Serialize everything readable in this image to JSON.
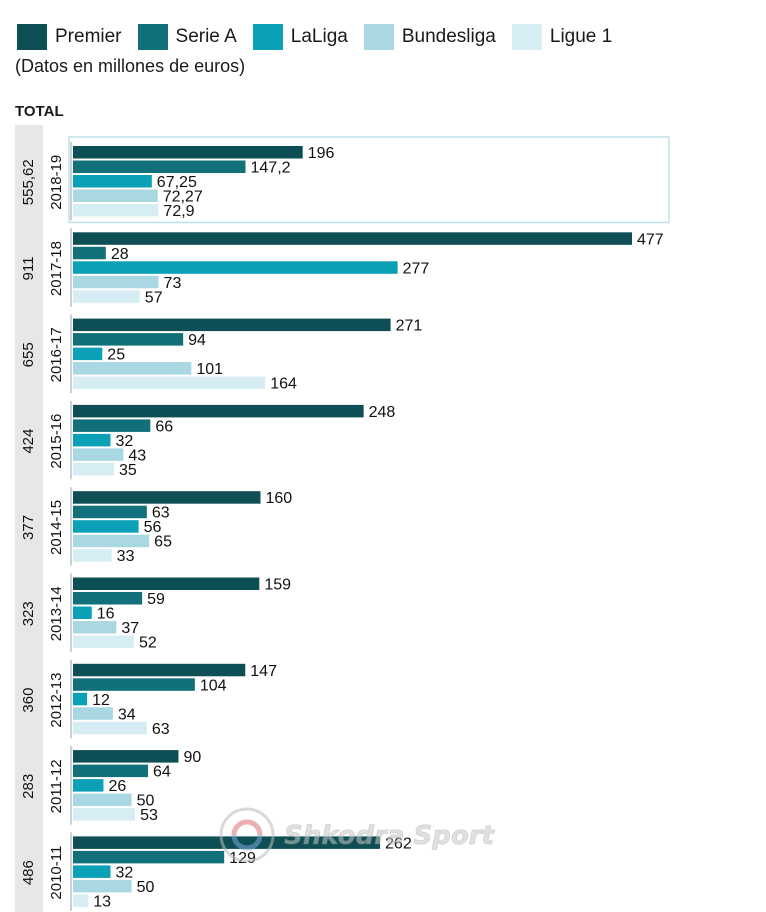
{
  "legend": [
    {
      "label": "Premier",
      "color": "#0e4f55"
    },
    {
      "label": "Serie A",
      "color": "#117079"
    },
    {
      "label": "LaLiga",
      "color": "#0aa0b5"
    },
    {
      "label": "Bundesliga",
      "color": "#a9d7e2"
    },
    {
      "label": "Ligue 1",
      "color": "#d6eef3"
    }
  ],
  "units_note": "(Datos en millones de euros)",
  "total_heading": "TOTAL",
  "watermark": "Shkodra Sport",
  "chart_data": {
    "type": "bar",
    "orientation": "horizontal",
    "title": "",
    "xlabel": "",
    "ylabel": "",
    "units": "millones de euros",
    "series_names": [
      "Premier",
      "Serie A",
      "LaLiga",
      "Bundesliga",
      "Ligue 1"
    ],
    "series_colors": [
      "#0e4f55",
      "#117079",
      "#0aa0b5",
      "#a9d7e2",
      "#d6eef3"
    ],
    "groups": [
      {
        "season": "2018-19",
        "total": "555,62",
        "values": [
          196,
          147.2,
          67.25,
          72.27,
          72.9
        ],
        "labels": [
          "196",
          "147,2",
          "67,25",
          "72,27",
          "72,9"
        ],
        "highlighted": true
      },
      {
        "season": "2017-18",
        "total": "911",
        "values": [
          477,
          28,
          277,
          73,
          57
        ],
        "labels": [
          "477",
          "28",
          "277",
          "73",
          "57"
        ]
      },
      {
        "season": "2016-17",
        "total": "655",
        "values": [
          271,
          94,
          25,
          101,
          164
        ],
        "labels": [
          "271",
          "94",
          "25",
          "101",
          "164"
        ]
      },
      {
        "season": "2015-16",
        "total": "424",
        "values": [
          248,
          66,
          32,
          43,
          35
        ],
        "labels": [
          "248",
          "66",
          "32",
          "43",
          "35"
        ]
      },
      {
        "season": "2014-15",
        "total": "377",
        "values": [
          160,
          63,
          56,
          65,
          33
        ],
        "labels": [
          "160",
          "63",
          "56",
          "65",
          "33"
        ]
      },
      {
        "season": "2013-14",
        "total": "323",
        "values": [
          159,
          59,
          16,
          37,
          52
        ],
        "labels": [
          "159",
          "59",
          "16",
          "37",
          "52"
        ]
      },
      {
        "season": "2012-13",
        "total": "360",
        "values": [
          147,
          104,
          12,
          34,
          63
        ],
        "labels": [
          "147",
          "104",
          "12",
          "34",
          "63"
        ]
      },
      {
        "season": "2011-12",
        "total": "283",
        "values": [
          90,
          64,
          26,
          50,
          53
        ],
        "labels": [
          "90",
          "64",
          "26",
          "50",
          "53"
        ]
      },
      {
        "season": "2010-11",
        "total": "486",
        "values": [
          262,
          129,
          32,
          50,
          13
        ],
        "labels": [
          "262",
          "129",
          "32",
          "50",
          "13"
        ]
      }
    ]
  }
}
